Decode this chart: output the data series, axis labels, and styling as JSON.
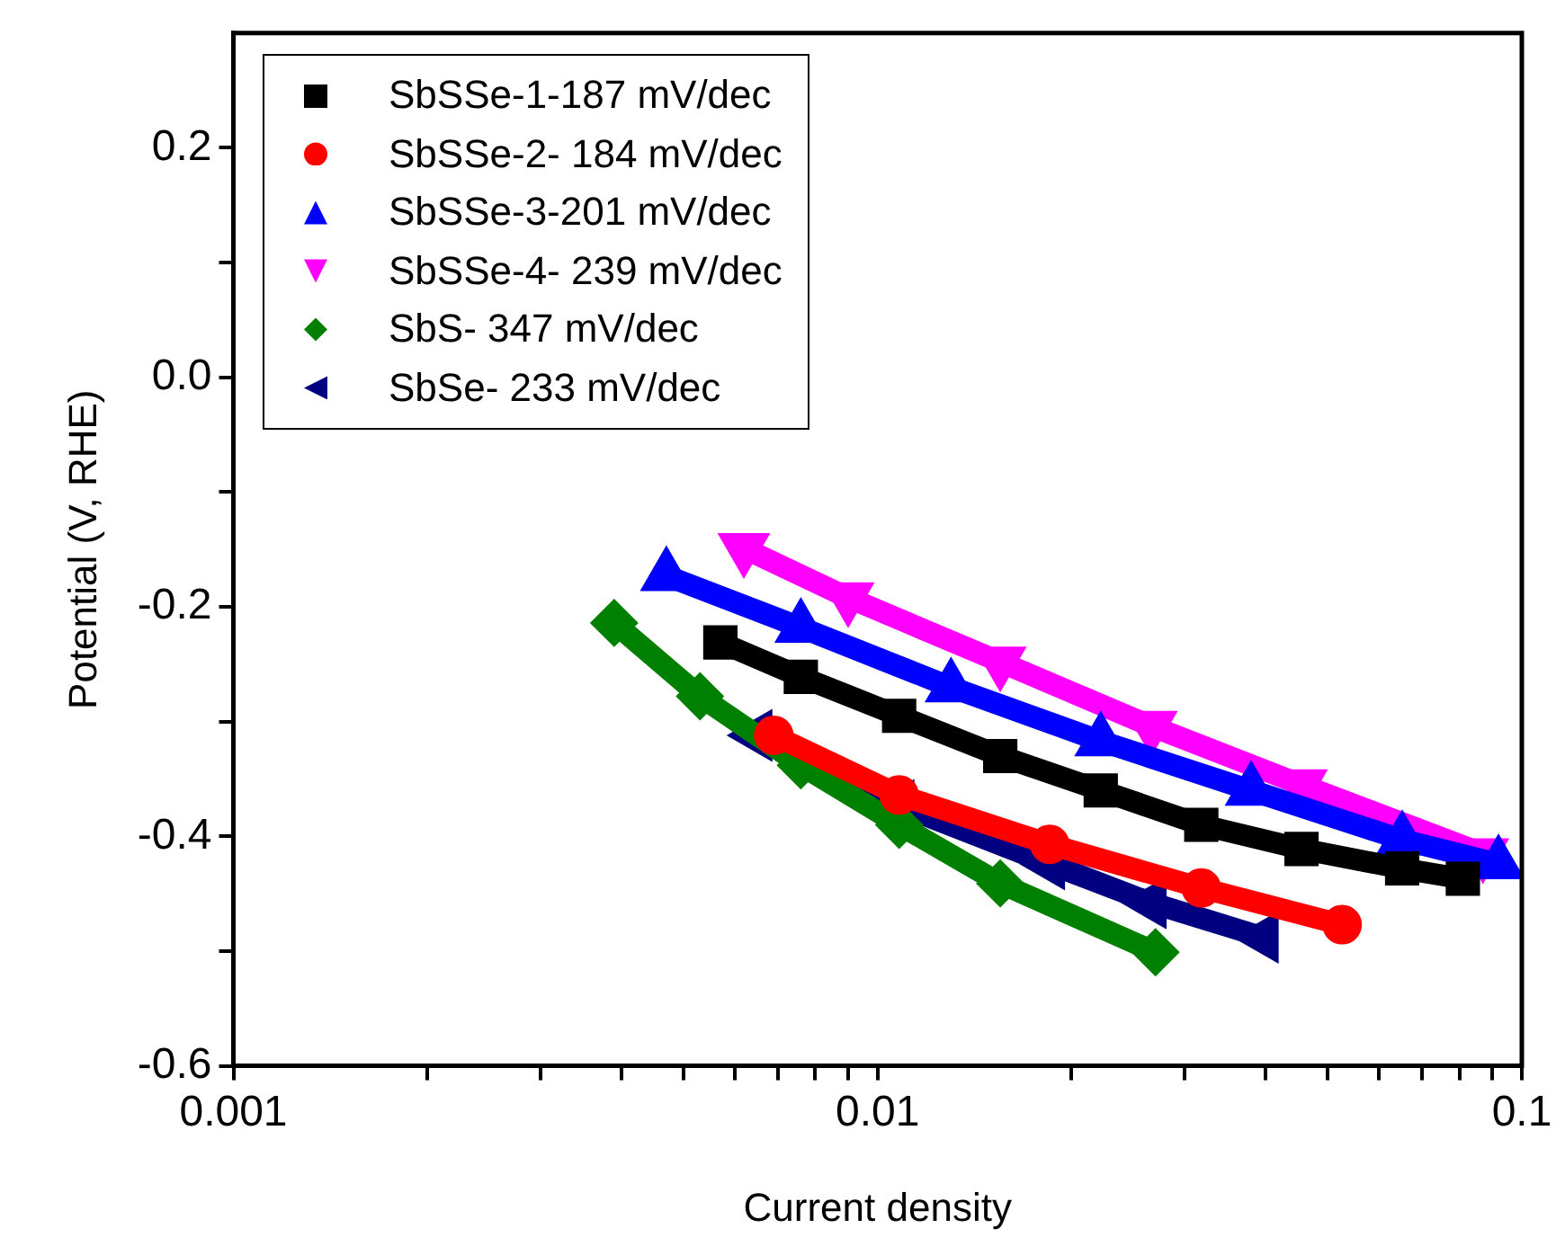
{
  "chart_data": {
    "type": "line",
    "xlabel": "Current density",
    "ylabel": "Potential (V, RHE)",
    "log": "x",
    "xlim": [
      0.001,
      0.1
    ],
    "xticks": [
      0.001,
      {
        "value": 0.002,
        "label": null
      },
      {
        "value": 0.003,
        "label": null
      },
      {
        "value": 0.004,
        "label": null
      },
      {
        "value": 0.005,
        "label": null
      },
      {
        "value": 0.006,
        "label": null
      },
      {
        "value": 0.007,
        "label": null
      },
      {
        "value": 0.008,
        "label": null
      },
      {
        "value": 0.009,
        "label": null
      },
      0.01,
      {
        "value": 0.02,
        "label": null
      },
      {
        "value": 0.03,
        "label": null
      },
      {
        "value": 0.04,
        "label": null
      },
      {
        "value": 0.05,
        "label": null
      },
      {
        "value": 0.06,
        "label": null
      },
      {
        "value": 0.07,
        "label": null
      },
      {
        "value": 0.08,
        "label": null
      },
      {
        "value": 0.09,
        "label": null
      },
      0.1
    ],
    "ylim": [
      -0.6,
      0.3
    ],
    "yticks": [
      {
        "value": -0.6,
        "label": "-0.6"
      },
      {
        "value": -0.5,
        "label": null
      },
      {
        "value": -0.4,
        "label": "-0.4"
      },
      {
        "value": -0.3,
        "label": null
      },
      {
        "value": -0.2,
        "label": "-0.2"
      },
      {
        "value": -0.1,
        "label": null
      },
      {
        "value": 0,
        "label": "0.0"
      },
      {
        "value": 0.1,
        "label": null
      },
      {
        "value": 0.2,
        "label": "0.2"
      }
    ],
    "grid": false,
    "legend": "top left",
    "line_style": "solid",
    "series": [
      {
        "name": "SbSSe-1-187 mV/dec",
        "color": "#000000",
        "marker": "square",
        "x": [
          0.0057,
          0.0076,
          0.0108,
          0.0155,
          0.0222,
          0.0318,
          0.0455,
          0.0652,
          0.081
        ],
        "values": [
          -0.231,
          -0.261,
          -0.295,
          -0.33,
          -0.36,
          -0.39,
          -0.411,
          -0.428,
          -0.437
        ]
      },
      {
        "name": "SbSSe-2- 184 mV/dec",
        "color": "#ff0000",
        "marker": "circle",
        "x": [
          0.0069,
          0.0108,
          0.0185,
          0.0318,
          0.0526
        ],
        "values": [
          -0.312,
          -0.364,
          -0.407,
          -0.445,
          -0.477
        ]
      },
      {
        "name": "SbSSe-3-201 mV/dec",
        "color": "#0000ff",
        "marker": "triangle",
        "x": [
          0.0047,
          0.0076,
          0.013,
          0.0222,
          0.038,
          0.0652,
          0.092
        ],
        "values": [
          -0.173,
          -0.218,
          -0.27,
          -0.317,
          -0.36,
          -0.403,
          -0.424
        ]
      },
      {
        "name": "SbSSe-4- 239 mV/dec",
        "color": "#ff00ff",
        "marker": "triangle-down",
        "x": [
          0.0062,
          0.009,
          0.0155,
          0.0266,
          0.0455,
          0.087
        ],
        "values": [
          -0.149,
          -0.192,
          -0.248,
          -0.304,
          -0.355,
          -0.415
        ]
      },
      {
        "name": "SbS- 347 mV/dec",
        "color": "#008000",
        "marker": "diamond",
        "x": [
          0.0039,
          0.0053,
          0.0076,
          0.0108,
          0.0155,
          0.027
        ],
        "values": [
          -0.214,
          -0.278,
          -0.338,
          -0.39,
          -0.441,
          -0.501
        ]
      },
      {
        "name": "SbSe- 233 mV/dec",
        "color": "#000080",
        "marker": "triangle-left",
        "x": [
          0.0065,
          0.0108,
          0.0185,
          0.0266,
          0.0397
        ],
        "values": [
          -0.312,
          -0.373,
          -0.424,
          -0.458,
          -0.488
        ]
      }
    ]
  }
}
